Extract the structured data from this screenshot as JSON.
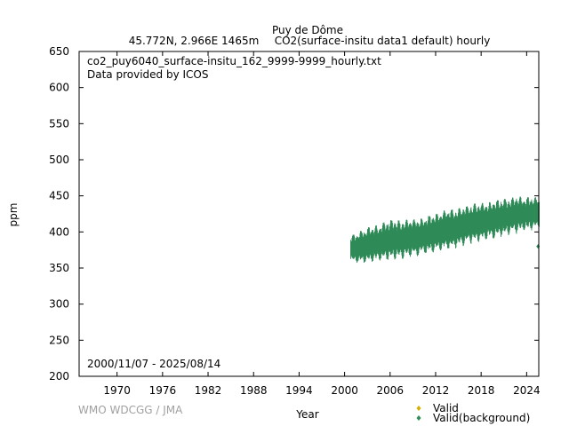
{
  "chart_data": {
    "type": "scatter",
    "title": {
      "station": "Puy de Dôme",
      "location": "45.772N, 2.966E 1465m",
      "parameter": "CO2(surface-insitu data1 default) hourly"
    },
    "xlabel": "Year",
    "ylabel": "ppm",
    "xlim": [
      1965.0,
      2025.6
    ],
    "ylim": [
      200,
      650
    ],
    "xticks": [
      1970,
      1976,
      1982,
      1988,
      1994,
      2000,
      2006,
      2012,
      2018,
      2024
    ],
    "yticks": [
      200,
      250,
      300,
      350,
      400,
      450,
      500,
      550,
      600,
      650
    ],
    "annotations": {
      "filename": "co2_puy6040_surface-insitu_162_9999-9999_hourly.txt",
      "provider": "Data provided by ICOS",
      "period": "2000/11/07 - 2025/08/14",
      "watermark": "WMO WDCGG / JMA"
    },
    "legend": {
      "position": "bottom-right",
      "entries": [
        {
          "label": "Valid",
          "color": "#d4b000",
          "marker": "diamond"
        },
        {
          "label": "Valid(background)",
          "color": "#2e8b57",
          "marker": "diamond"
        }
      ]
    },
    "series": [
      {
        "name": "Valid(background)",
        "color": "#2e8b57",
        "envelope": {
          "year": [
            2000.85,
            2001.5,
            2002.5,
            2003.5,
            2004.5,
            2005.5,
            2006.5,
            2007.5,
            2008.5,
            2009.5,
            2010.5,
            2011.5,
            2012.5,
            2013.5,
            2014.5,
            2015.5,
            2016.5,
            2017.5,
            2018.5,
            2019.5,
            2020.5,
            2021.5,
            2022.5,
            2023.5,
            2024.5,
            2025.6
          ],
          "min": [
            358,
            356,
            355,
            357,
            358,
            360,
            361,
            362,
            364,
            365,
            368,
            370,
            372,
            374,
            377,
            380,
            383,
            385,
            388,
            390,
            393,
            395,
            397,
            400,
            402,
            404
          ],
          "max": [
            395,
            398,
            404,
            408,
            410,
            415,
            417,
            415,
            418,
            418,
            420,
            424,
            427,
            432,
            430,
            435,
            438,
            440,
            440,
            442,
            445,
            446,
            450,
            448,
            448,
            448
          ]
        },
        "outliers": [
          {
            "x": 2025.5,
            "y": 380
          }
        ]
      }
    ]
  }
}
